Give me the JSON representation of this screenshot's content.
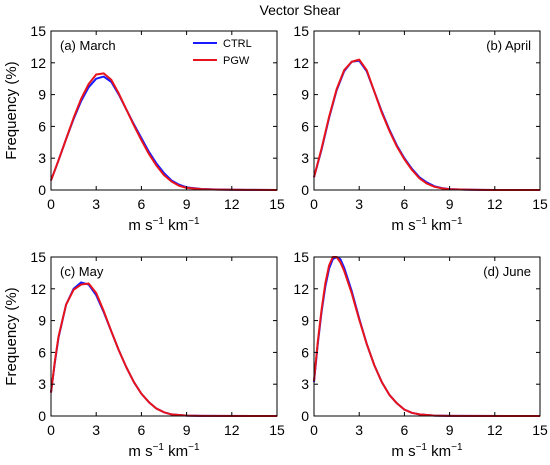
{
  "figure_title": "Vector Shear",
  "colors": {
    "ctrl": "#1a1aff",
    "pgw": "#e8141c"
  },
  "chart_data": [
    {
      "type": "line",
      "panel_label": "(a) March",
      "xlabel": "m s",
      "xlabel_sup1": "−1",
      "xlabel_mid": " km",
      "xlabel_sup2": "−1",
      "ylabel": "Frequency (%)",
      "xlim": [
        0,
        15
      ],
      "ylim": [
        0,
        15
      ],
      "xticks": [
        0,
        3,
        6,
        9,
        12,
        15
      ],
      "yticks": [
        0,
        3,
        6,
        9,
        12,
        15
      ],
      "legend": {
        "placement": "top-center",
        "entries": [
          "CTRL",
          "PGW"
        ]
      },
      "series": [
        {
          "name": "CTRL",
          "x": [
            0,
            0.5,
            1,
            1.5,
            2,
            2.5,
            3,
            3.5,
            4,
            4.5,
            5,
            5.5,
            6,
            6.5,
            7,
            7.5,
            8,
            8.5,
            9,
            10,
            11,
            12,
            13,
            15
          ],
          "y": [
            0.9,
            2.8,
            4.8,
            6.7,
            8.4,
            9.7,
            10.5,
            10.7,
            10.2,
            9.0,
            7.6,
            6.2,
            4.9,
            3.6,
            2.5,
            1.6,
            0.9,
            0.5,
            0.25,
            0.1,
            0.05,
            0.02,
            0.01,
            0
          ]
        },
        {
          "name": "PGW",
          "x": [
            0,
            0.5,
            1,
            1.5,
            2,
            2.5,
            3,
            3.5,
            4,
            4.5,
            5,
            5.5,
            6,
            6.5,
            7,
            7.5,
            8,
            8.5,
            9,
            10,
            11,
            12,
            13,
            15
          ],
          "y": [
            0.9,
            2.8,
            4.8,
            6.8,
            8.6,
            10.0,
            10.9,
            11.0,
            10.4,
            9.1,
            7.6,
            6.1,
            4.7,
            3.4,
            2.3,
            1.4,
            0.8,
            0.4,
            0.2,
            0.08,
            0.04,
            0.02,
            0.01,
            0
          ]
        }
      ]
    },
    {
      "type": "line",
      "panel_label": "(b) April",
      "xlabel": "m s",
      "xlabel_sup1": "−1",
      "xlabel_mid": " km",
      "xlabel_sup2": "−1",
      "ylabel": "",
      "xlim": [
        0,
        15
      ],
      "ylim": [
        0,
        15
      ],
      "xticks": [
        0,
        3,
        6,
        9,
        12,
        15
      ],
      "yticks": [
        0,
        3,
        6,
        9,
        12,
        15
      ],
      "series": [
        {
          "name": "CTRL",
          "x": [
            0,
            0.5,
            1,
            1.5,
            2,
            2.5,
            3,
            3.5,
            4,
            4.5,
            5,
            5.5,
            6,
            6.5,
            7,
            7.5,
            8,
            8.5,
            9,
            10,
            11,
            12,
            15
          ],
          "y": [
            1.2,
            3.8,
            6.8,
            9.4,
            11.2,
            12.1,
            12.2,
            11.2,
            9.3,
            7.4,
            5.7,
            4.2,
            3.0,
            2.0,
            1.2,
            0.7,
            0.35,
            0.18,
            0.08,
            0.03,
            0.01,
            0,
            0
          ]
        },
        {
          "name": "PGW",
          "x": [
            0,
            0.5,
            1,
            1.5,
            2,
            2.5,
            3,
            3.5,
            4,
            4.5,
            5,
            5.5,
            6,
            6.5,
            7,
            7.5,
            8,
            8.5,
            9,
            10,
            11,
            12,
            15
          ],
          "y": [
            1.2,
            3.9,
            6.9,
            9.5,
            11.3,
            12.1,
            12.3,
            11.3,
            9.3,
            7.3,
            5.6,
            4.1,
            2.9,
            1.9,
            1.1,
            0.6,
            0.3,
            0.15,
            0.07,
            0.03,
            0.01,
            0,
            0
          ]
        }
      ]
    },
    {
      "type": "line",
      "panel_label": "(c) May",
      "xlabel": "m s",
      "xlabel_sup1": "−1",
      "xlabel_mid": " km",
      "xlabel_sup2": "−1",
      "ylabel": "Frequency (%)",
      "xlim": [
        0,
        15
      ],
      "ylim": [
        0,
        15
      ],
      "xticks": [
        0,
        3,
        6,
        9,
        12,
        15
      ],
      "yticks": [
        0,
        3,
        6,
        9,
        12,
        15
      ],
      "series": [
        {
          "name": "CTRL",
          "x": [
            0,
            0.25,
            0.5,
            1,
            1.5,
            2,
            2.5,
            3,
            3.5,
            4,
            4.5,
            5,
            5.5,
            6,
            6.5,
            7,
            7.5,
            8,
            9,
            10,
            15
          ],
          "y": [
            2.2,
            5.0,
            7.4,
            10.5,
            12.0,
            12.6,
            12.4,
            11.4,
            9.8,
            8.0,
            6.2,
            4.6,
            3.2,
            2.1,
            1.3,
            0.7,
            0.35,
            0.15,
            0.03,
            0.01,
            0
          ]
        },
        {
          "name": "PGW",
          "x": [
            0,
            0.25,
            0.5,
            1,
            1.5,
            2,
            2.5,
            3,
            3.5,
            4,
            4.5,
            5,
            5.5,
            6,
            6.5,
            7,
            7.5,
            8,
            9,
            10,
            15
          ],
          "y": [
            2.2,
            5.1,
            7.5,
            10.5,
            11.9,
            12.4,
            12.5,
            11.6,
            9.9,
            8.0,
            6.2,
            4.6,
            3.2,
            2.1,
            1.3,
            0.7,
            0.35,
            0.15,
            0.03,
            0.01,
            0
          ]
        }
      ]
    },
    {
      "type": "line",
      "panel_label": "(d) June",
      "xlabel": "m s",
      "xlabel_sup1": "−1",
      "xlabel_mid": " km",
      "xlabel_sup2": "−1",
      "ylabel": "",
      "xlim": [
        0,
        15
      ],
      "ylim": [
        0,
        15
      ],
      "xticks": [
        0,
        3,
        6,
        9,
        12,
        15
      ],
      "yticks": [
        0,
        3,
        6,
        9,
        12,
        15
      ],
      "series": [
        {
          "name": "CTRL",
          "x": [
            0,
            0.25,
            0.5,
            0.75,
            1,
            1.25,
            1.5,
            1.75,
            2,
            2.5,
            3,
            3.5,
            4,
            4.5,
            5,
            5.5,
            6,
            6.5,
            7,
            8,
            9,
            15
          ],
          "y": [
            3.2,
            6.8,
            9.8,
            12.2,
            13.9,
            14.8,
            15.0,
            14.8,
            14.0,
            11.8,
            9.2,
            6.8,
            4.8,
            3.2,
            2.0,
            1.2,
            0.6,
            0.3,
            0.15,
            0.04,
            0.01,
            0
          ]
        },
        {
          "name": "PGW",
          "x": [
            0,
            0.25,
            0.5,
            0.75,
            1,
            1.25,
            1.5,
            1.75,
            2,
            2.5,
            3,
            3.5,
            4,
            4.5,
            5,
            5.5,
            6,
            6.5,
            7,
            8,
            9,
            15
          ],
          "y": [
            3.3,
            7.0,
            10.0,
            12.5,
            14.2,
            15.0,
            15.0,
            14.5,
            13.7,
            11.6,
            9.1,
            6.8,
            4.8,
            3.2,
            2.0,
            1.2,
            0.6,
            0.3,
            0.15,
            0.04,
            0.01,
            0
          ]
        }
      ]
    }
  ]
}
